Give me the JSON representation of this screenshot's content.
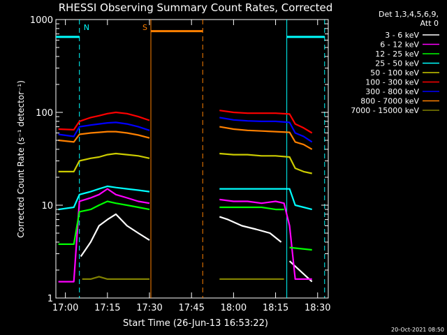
{
  "chart_data": {
    "type": "line",
    "title": "RHESSI Observing Summary Count Rates, Corrected",
    "xlabel": "Start Time (26-Jun-13 16:53:22)",
    "ylabel": "Corrected Count Rate (s⁻¹ detector⁻¹)",
    "yscale": "log",
    "ylim": [
      1,
      1000
    ],
    "xlim_minutes": [
      -3.4,
      93.8
    ],
    "x_ticks": [
      "17:00",
      "17:15",
      "17:30",
      "17:45",
      "18:00",
      "18:15",
      "18:30"
    ],
    "x_tick_minutes": [
      0,
      15,
      30,
      45,
      60,
      75,
      90
    ],
    "y_ticks": [
      "1",
      "10",
      "100",
      "1000"
    ],
    "y_tick_values": [
      1,
      10,
      100,
      1000
    ],
    "legend_header": [
      "Det 1,3,4,5,6,9,",
      "Att 0"
    ],
    "legend_position": "right",
    "series": [
      {
        "name": "3 - 6 keV",
        "color": "#ffffff",
        "x": [
          -2.5,
          5,
          5.5,
          9,
          12,
          15,
          18,
          22,
          26,
          30,
          50,
          55,
          58,
          63,
          68,
          73,
          77,
          79,
          80,
          88
        ],
        "y": [
          null,
          null,
          2.8,
          4,
          6,
          7,
          8,
          6,
          5,
          4.2,
          null,
          7.5,
          7,
          6,
          5.5,
          5,
          4,
          null,
          2.5,
          1.5
        ]
      },
      {
        "name": "6 - 12 keV",
        "color": "#ff00ff",
        "x": [
          -2.5,
          0,
          3,
          5,
          9,
          12,
          15,
          18,
          22,
          26,
          30,
          50,
          55,
          60,
          65,
          70,
          75,
          78,
          80,
          82,
          88
        ],
        "y": [
          1.5,
          1.5,
          1.5,
          11,
          12,
          13,
          15,
          13,
          12,
          11,
          10.5,
          null,
          11.5,
          11,
          11,
          10.5,
          11,
          10.5,
          6,
          1.6,
          1.6
        ]
      },
      {
        "name": "12 - 25 keV",
        "color": "#00ff00",
        "x": [
          -2.5,
          3,
          5,
          9,
          12,
          15,
          18,
          22,
          26,
          30,
          50,
          55,
          60,
          65,
          70,
          75,
          78,
          79,
          80,
          88
        ],
        "y": [
          3.8,
          3.8,
          8.5,
          9,
          10,
          11,
          10.5,
          10,
          9.5,
          9,
          null,
          9.5,
          9.5,
          9.5,
          9.5,
          9,
          9,
          null,
          3.5,
          3.3
        ]
      },
      {
        "name": "25 - 50 keV",
        "color": "#00ffff",
        "x": [
          -2.5,
          3,
          5,
          9,
          12,
          15,
          18,
          22,
          26,
          30,
          50,
          55,
          60,
          65,
          70,
          75,
          80,
          82,
          85,
          88
        ],
        "y": [
          9,
          9.5,
          13,
          14,
          15,
          16,
          15.5,
          15,
          14.5,
          14,
          null,
          15,
          15,
          15,
          15,
          15,
          15,
          10,
          9.5,
          9
        ]
      },
      {
        "name": "50 - 100 keV",
        "color": "#cccc00",
        "x": [
          -2.5,
          3,
          5,
          9,
          12,
          15,
          18,
          22,
          26,
          30,
          50,
          55,
          60,
          65,
          70,
          75,
          80,
          82,
          85,
          88
        ],
        "y": [
          23,
          23,
          30,
          32,
          33,
          35,
          36,
          35,
          34,
          32,
          null,
          36,
          35,
          35,
          34,
          34,
          33,
          25,
          23,
          22
        ]
      },
      {
        "name": "100 - 300 keV",
        "color": "#ff0000",
        "x": [
          -2.5,
          3,
          5,
          9,
          12,
          15,
          18,
          22,
          26,
          30,
          50,
          55,
          60,
          65,
          70,
          75,
          80,
          82,
          85,
          88
        ],
        "y": [
          66,
          65,
          80,
          88,
          92,
          97,
          100,
          97,
          90,
          82,
          null,
          105,
          100,
          98,
          98,
          98,
          96,
          75,
          68,
          60
        ]
      },
      {
        "name": "300 - 800 keV",
        "color": "#0000ff",
        "x": [
          -2.5,
          3,
          5,
          9,
          12,
          15,
          18,
          22,
          26,
          30,
          50,
          55,
          60,
          65,
          70,
          75,
          80,
          82,
          85,
          88
        ],
        "y": [
          58,
          55,
          70,
          73,
          75,
          77,
          78,
          75,
          70,
          64,
          null,
          88,
          83,
          81,
          80,
          80,
          78,
          60,
          55,
          48
        ]
      },
      {
        "name": "800 - 7000 keV",
        "color": "#ff8000",
        "x": [
          -2.5,
          3,
          5,
          9,
          12,
          15,
          18,
          22,
          26,
          30,
          50,
          55,
          60,
          65,
          70,
          75,
          80,
          82,
          85,
          88
        ],
        "y": [
          50,
          48,
          58,
          60,
          61,
          62,
          62,
          60,
          57,
          53,
          null,
          70,
          66,
          64,
          63,
          62,
          61,
          48,
          45,
          40
        ]
      },
      {
        "name": "7000 - 15000 keV",
        "color": "#808000",
        "x": [
          -2.5,
          3,
          5,
          6,
          9,
          12,
          15,
          18,
          22,
          26,
          30,
          50,
          55,
          60,
          65,
          70,
          75,
          78,
          80,
          88
        ],
        "y": [
          null,
          null,
          null,
          1.6,
          1.6,
          1.7,
          1.6,
          1.6,
          1.6,
          1.6,
          1.6,
          null,
          1.6,
          1.6,
          1.6,
          1.6,
          1.6,
          1.6,
          null,
          1.6
        ]
      }
    ],
    "annotations": [
      {
        "label": "N",
        "color": "#00ffff",
        "kind": "night",
        "start_minute": -3.4,
        "end_minute": 5,
        "level": 650
      },
      {
        "label": "S",
        "color": "#ff8000",
        "kind": "saa",
        "start_minute": 30.5,
        "end_minute": 49,
        "level": 750
      },
      {
        "label": "",
        "color": "#00ffff",
        "kind": "night",
        "start_minute": 79,
        "end_minute": 92.5,
        "level": 650
      }
    ],
    "footer": "20-Oct-2021 08:50"
  }
}
